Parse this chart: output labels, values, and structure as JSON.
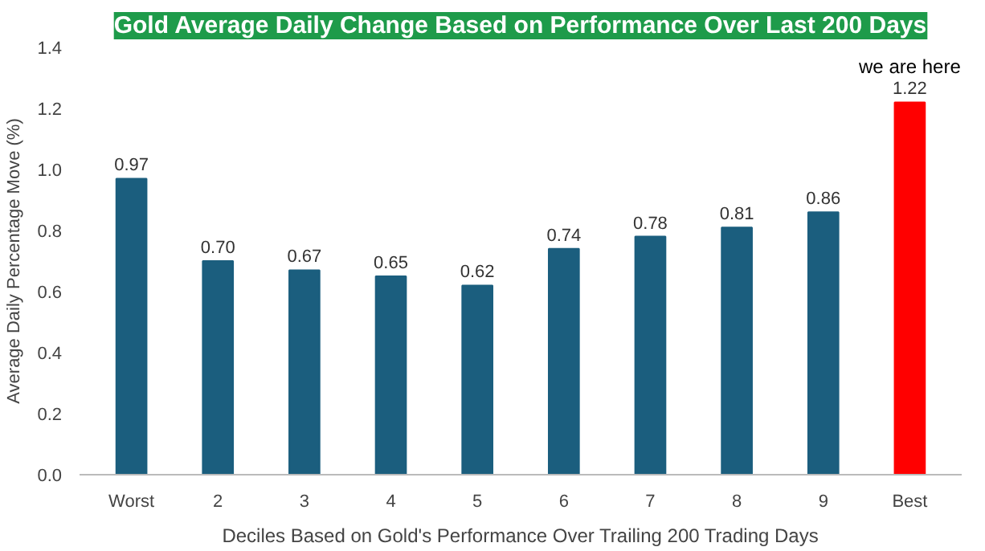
{
  "chart_data": {
    "type": "bar",
    "title": "Gold Average Daily Change Based on Performance Over Last 200 Days",
    "xlabel": "Deciles Based on Gold's Performance Over Trailing 200 Trading Days",
    "ylabel": "Average Daily Percentage Move (%)",
    "categories": [
      "Worst",
      "2",
      "3",
      "4",
      "5",
      "6",
      "7",
      "8",
      "9",
      "Best"
    ],
    "values": [
      0.97,
      0.7,
      0.67,
      0.65,
      0.62,
      0.74,
      0.78,
      0.81,
      0.86,
      1.22
    ],
    "colors": [
      "#1b5e7e",
      "#1b5e7e",
      "#1b5e7e",
      "#1b5e7e",
      "#1b5e7e",
      "#1b5e7e",
      "#1b5e7e",
      "#1b5e7e",
      "#1b5e7e",
      "#ff0000"
    ],
    "value_labels": [
      "0.97",
      "0.70",
      "0.67",
      "0.65",
      "0.62",
      "0.74",
      "0.78",
      "0.81",
      "0.86",
      "1.22"
    ],
    "ylim": [
      0,
      1.4
    ],
    "yticks": [
      {
        "value": 0,
        "label": "0.0"
      },
      {
        "value": 0.2,
        "label": "0.2"
      },
      {
        "value": 0.4,
        "label": "0.4"
      },
      {
        "value": 0.6,
        "label": "0.6"
      },
      {
        "value": 0.8,
        "label": "0.8"
      },
      {
        "value": 1.0,
        "label": "1.0"
      },
      {
        "value": 1.2,
        "label": "1.2"
      },
      {
        "value": 1.4,
        "label": "1.4"
      }
    ],
    "annotations": [
      "we are here"
    ],
    "grid": false
  }
}
